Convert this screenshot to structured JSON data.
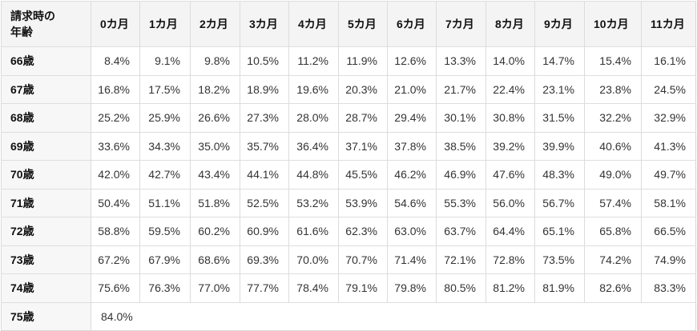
{
  "chart_data": {
    "type": "table",
    "corner_header": "請求時の\n年齢",
    "columns": [
      "0カ月",
      "1カ月",
      "2カ月",
      "3カ月",
      "4カ月",
      "5カ月",
      "6カ月",
      "7カ月",
      "8カ月",
      "9カ月",
      "10カ月",
      "11カ月"
    ],
    "rows": [
      {
        "age": "66歳",
        "values": [
          "8.4%",
          "9.1%",
          "9.8%",
          "10.5%",
          "11.2%",
          "11.9%",
          "12.6%",
          "13.3%",
          "14.0%",
          "14.7%",
          "15.4%",
          "16.1%"
        ]
      },
      {
        "age": "67歳",
        "values": [
          "16.8%",
          "17.5%",
          "18.2%",
          "18.9%",
          "19.6%",
          "20.3%",
          "21.0%",
          "21.7%",
          "22.4%",
          "23.1%",
          "23.8%",
          "24.5%"
        ]
      },
      {
        "age": "68歳",
        "values": [
          "25.2%",
          "25.9%",
          "26.6%",
          "27.3%",
          "28.0%",
          "28.7%",
          "29.4%",
          "30.1%",
          "30.8%",
          "31.5%",
          "32.2%",
          "32.9%"
        ]
      },
      {
        "age": "69歳",
        "values": [
          "33.6%",
          "34.3%",
          "35.0%",
          "35.7%",
          "36.4%",
          "37.1%",
          "37.8%",
          "38.5%",
          "39.2%",
          "39.9%",
          "40.6%",
          "41.3%"
        ]
      },
      {
        "age": "70歳",
        "values": [
          "42.0%",
          "42.7%",
          "43.4%",
          "44.1%",
          "44.8%",
          "45.5%",
          "46.2%",
          "46.9%",
          "47.6%",
          "48.3%",
          "49.0%",
          "49.7%"
        ]
      },
      {
        "age": "71歳",
        "values": [
          "50.4%",
          "51.1%",
          "51.8%",
          "52.5%",
          "53.2%",
          "53.9%",
          "54.6%",
          "55.3%",
          "56.0%",
          "56.7%",
          "57.4%",
          "58.1%"
        ]
      },
      {
        "age": "72歳",
        "values": [
          "58.8%",
          "59.5%",
          "60.2%",
          "60.9%",
          "61.6%",
          "62.3%",
          "63.0%",
          "63.7%",
          "64.4%",
          "65.1%",
          "65.8%",
          "66.5%"
        ]
      },
      {
        "age": "73歳",
        "values": [
          "67.2%",
          "67.9%",
          "68.6%",
          "69.3%",
          "70.0%",
          "70.7%",
          "71.4%",
          "72.1%",
          "72.8%",
          "73.5%",
          "74.2%",
          "74.9%"
        ]
      },
      {
        "age": "74歳",
        "values": [
          "75.6%",
          "76.3%",
          "77.0%",
          "77.7%",
          "78.4%",
          "79.1%",
          "79.8%",
          "80.5%",
          "81.2%",
          "81.9%",
          "82.6%",
          "83.3%"
        ]
      },
      {
        "age": "75歳",
        "values": [
          "84.0%"
        ],
        "colspan": 12
      }
    ]
  },
  "colors": {
    "header_bg": "#f4f4f4",
    "age_column_bg": "#f7f7f7",
    "border_outer": "#d6d6d6",
    "border_horizontal": "#dedede",
    "border_vertical": "#dcdcdc",
    "value_text": "#333333",
    "heading_text": "#111111"
  }
}
